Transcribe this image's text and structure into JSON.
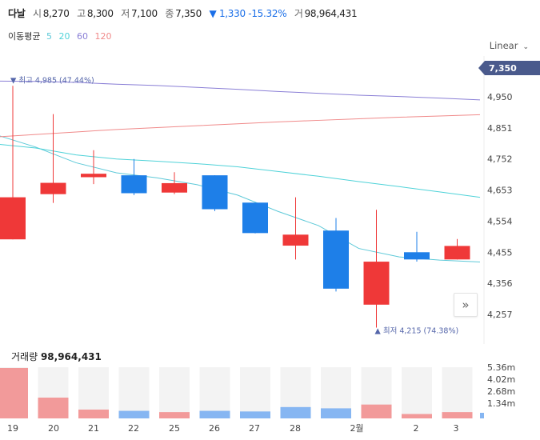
{
  "header": {
    "name": "다날",
    "open_label": "시",
    "open": "8,270",
    "high_label": "고",
    "high": "8,300",
    "low_label": "저",
    "low": "7,100",
    "close_label": "종",
    "close": "7,350",
    "change": "▼ 1,330 -15.32%",
    "volume_label": "거",
    "volume": "98,964,431"
  },
  "ma_legend": {
    "title": "이동평균",
    "periods": [
      "5",
      "20",
      "60",
      "120"
    ]
  },
  "scale_button": {
    "label": "Linear"
  },
  "colors": {
    "up": "#ef3838",
    "down": "#1e7fe8",
    "ma5": "#5ec9d8",
    "ma20": "#4fd2d8",
    "ma60": "#8a7fd6",
    "ma120": "#f08a8a",
    "price_tag": "#4a5a8c"
  },
  "volume_panel": {
    "label": "거래량",
    "value": "98,964,431"
  },
  "chart_data": {
    "type": "candlestick",
    "y_ticks": [
      "4,950",
      "4,851",
      "4,752",
      "4,653",
      "4,554",
      "4,455",
      "4,356",
      "4,257"
    ],
    "current_price": "7,350",
    "annotations": {
      "high": "최고 4,985 (47.44%)",
      "low": "최저 4,215 (74.38%)"
    },
    "x_labels": [
      "19",
      "20",
      "21",
      "22",
      "25",
      "26",
      "27",
      "28",
      "2월",
      "2",
      "3"
    ],
    "candles": [
      {
        "open": 4496,
        "high": 4985,
        "low": 4496,
        "close": 4630,
        "dir": "up"
      },
      {
        "open": 4640,
        "high": 4895,
        "low": 4612,
        "close": 4676,
        "dir": "up"
      },
      {
        "open": 4694,
        "high": 4780,
        "low": 4672,
        "close": 4705,
        "dir": "up"
      },
      {
        "open": 4700,
        "high": 4752,
        "low": 4637,
        "close": 4643,
        "dir": "down"
      },
      {
        "open": 4645,
        "high": 4710,
        "low": 4640,
        "close": 4675,
        "dir": "up"
      },
      {
        "open": 4700,
        "high": 4700,
        "low": 4586,
        "close": 4592,
        "dir": "down"
      },
      {
        "open": 4613,
        "high": 4613,
        "low": 4515,
        "close": 4516,
        "dir": "down"
      },
      {
        "open": 4476,
        "high": 4630,
        "low": 4432,
        "close": 4511,
        "dir": "up"
      },
      {
        "open": 4524,
        "high": 4564,
        "low": 4330,
        "close": 4339,
        "dir": "down"
      },
      {
        "open": 4288,
        "high": 4590,
        "low": 4215,
        "close": 4425,
        "dir": "up"
      },
      {
        "open": 4455,
        "high": 4520,
        "low": 4425,
        "close": 4432,
        "dir": "down"
      },
      {
        "open": 4432,
        "high": 4497,
        "low": 4432,
        "close": 4475,
        "dir": "up"
      }
    ],
    "moving_averages": {
      "ma5": [
        4830,
        4790,
        4740,
        4708,
        4692,
        4670,
        4637,
        4585,
        4540,
        4467,
        4440,
        4430,
        4424
      ],
      "ma20": [
        4800,
        4787,
        4765,
        4752,
        4745,
        4737,
        4727,
        4712,
        4697,
        4680,
        4664,
        4647,
        4630
      ],
      "ma60": [
        5000,
        4999,
        4996,
        4990,
        4986,
        4980,
        4974,
        4967,
        4961,
        4955,
        4951,
        4946,
        4940
      ],
      "ma120": [
        4822,
        4830,
        4838,
        4846,
        4852,
        4858,
        4864,
        4870,
        4875,
        4880,
        4885,
        4889,
        4893
      ]
    },
    "volume": {
      "ticks": [
        "5.36m",
        "4.02m",
        "2.68m",
        "1.34m"
      ],
      "values": [
        8.0,
        3.3,
        1.4,
        1.2,
        1.0,
        1.2,
        1.1,
        1.8,
        1.6,
        2.2,
        0.7,
        1.0
      ],
      "dirs": [
        "up",
        "up",
        "up",
        "down",
        "up",
        "down",
        "down",
        "down",
        "down",
        "up",
        "up",
        "up"
      ]
    }
  }
}
